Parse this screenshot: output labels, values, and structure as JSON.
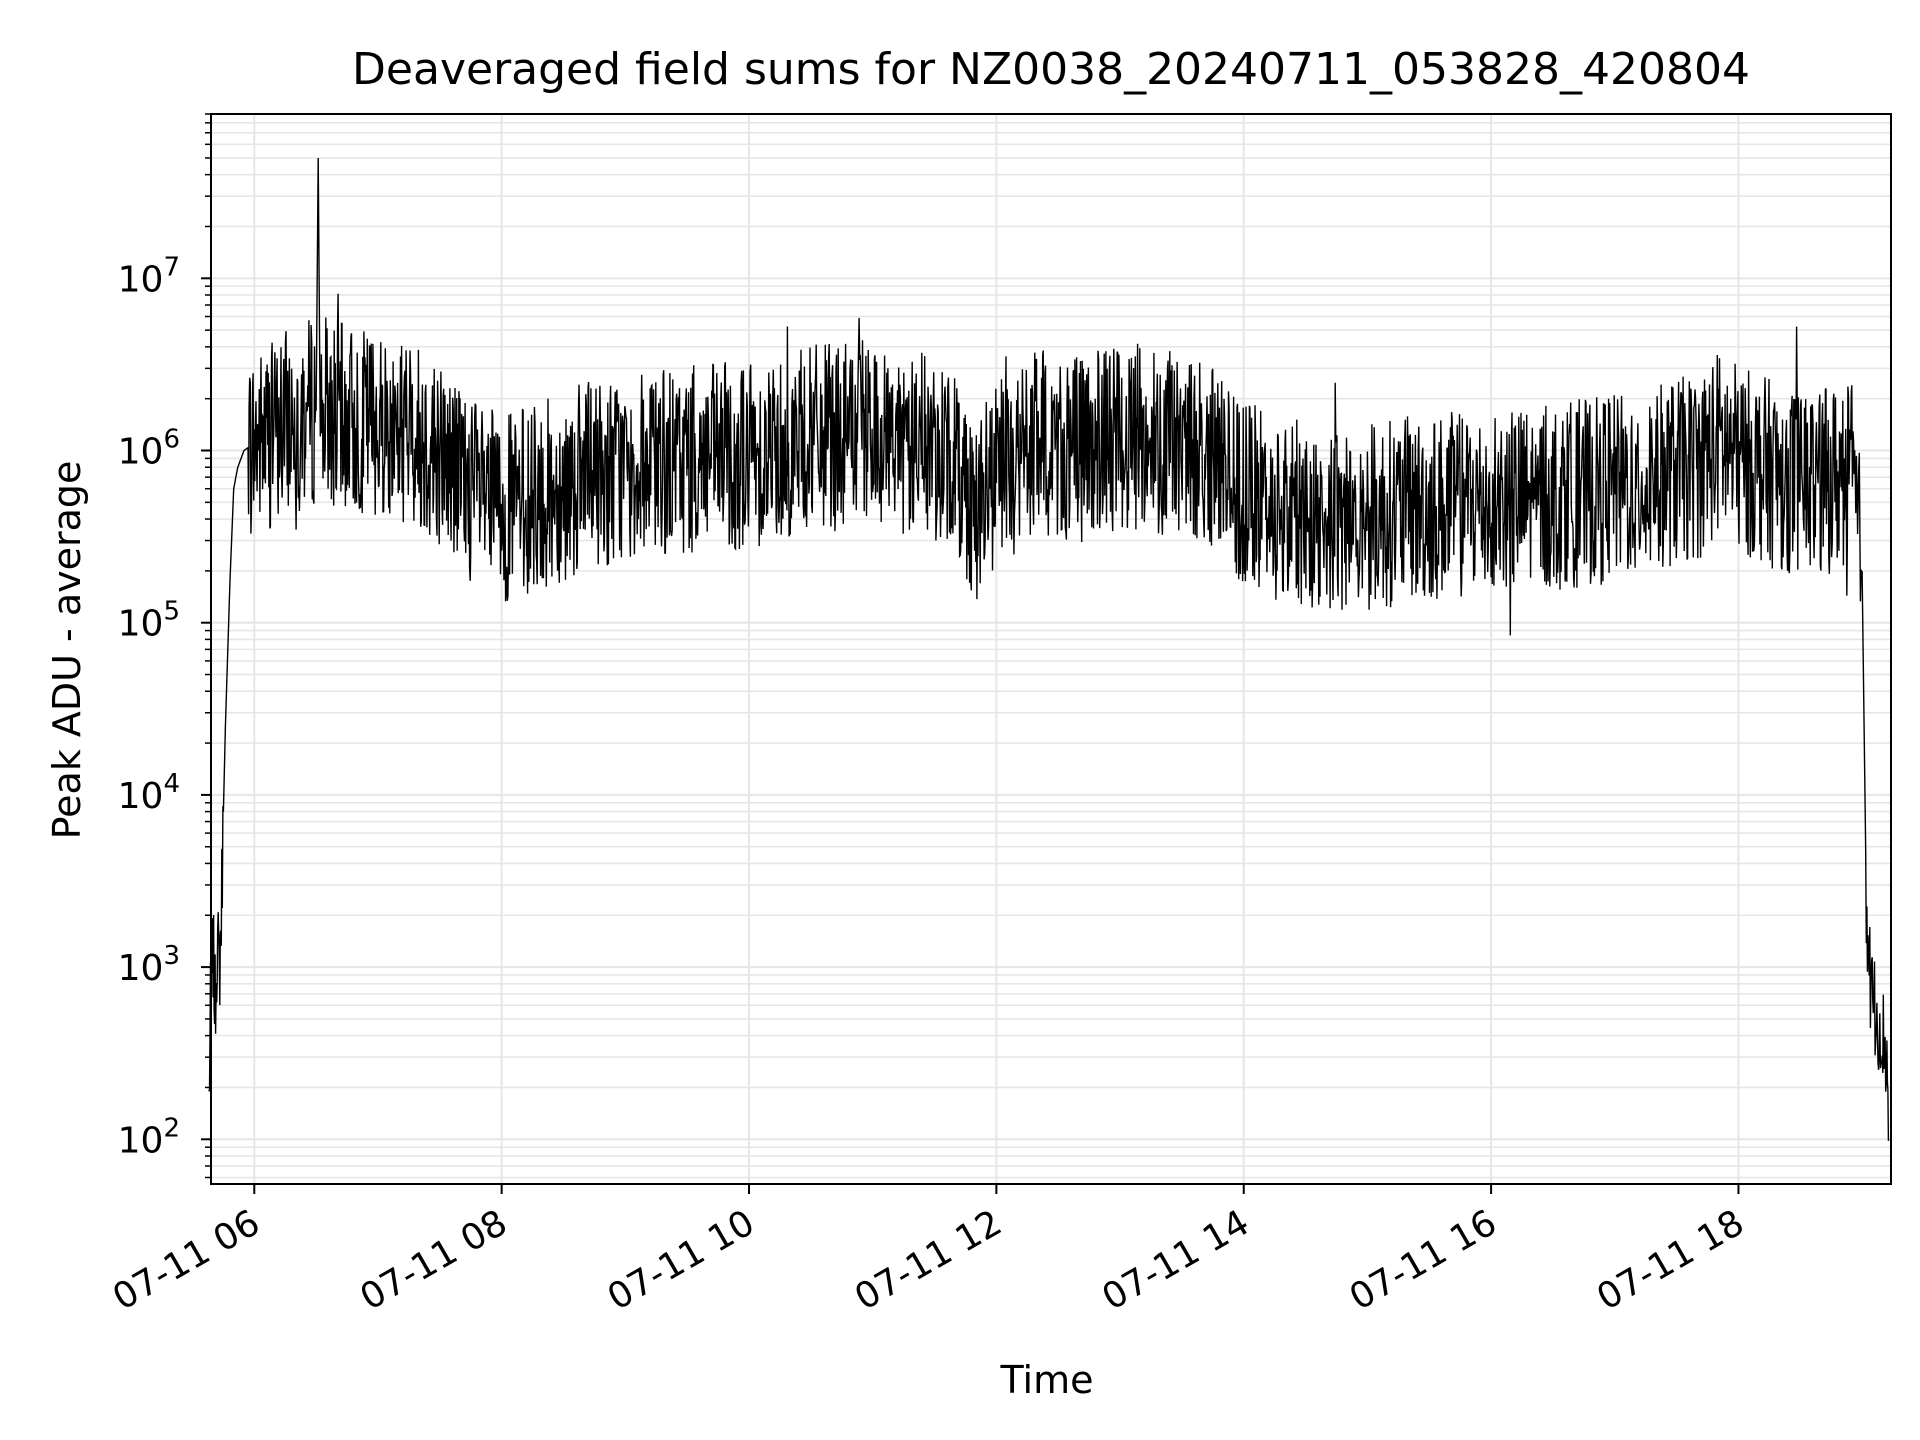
{
  "chart_data": {
    "type": "line",
    "title": "Deaveraged field sums for NZ0038_20240711_053828_420804",
    "xlabel": "Time",
    "ylabel": "Peak ADU - average",
    "x_scale": "time",
    "y_scale": "log",
    "xlim": [
      "07-11 05:39",
      "07-11 19:14"
    ],
    "ylim": [
      55,
      90000000
    ],
    "x_ticks": [
      "07-11 06",
      "07-11 08",
      "07-11 10",
      "07-11 12",
      "07-11 14",
      "07-11 16",
      "07-11 18"
    ],
    "y_ticks": [
      {
        "value": 100,
        "base": "10",
        "exp": "2"
      },
      {
        "value": 1000,
        "base": "10",
        "exp": "3"
      },
      {
        "value": 10000,
        "base": "10",
        "exp": "4"
      },
      {
        "value": 100000,
        "base": "10",
        "exp": "5"
      },
      {
        "value": 1000000,
        "base": "10",
        "exp": "6"
      },
      {
        "value": 10000000,
        "base": "10",
        "exp": "7"
      }
    ],
    "grid": true,
    "line_color": "#000000",
    "grid_color": "#e6e6e6",
    "series": [
      {
        "x": [
          "07-11 05:38",
          "07-11 05:39",
          "07-11 05:40",
          "07-11 05:41",
          "07-11 05:42",
          "07-11 05:43",
          "07-11 05:44",
          "07-11 05:45",
          "07-11 05:46",
          "07-11 05:48",
          "07-11 05:50",
          "07-11 05:52",
          "07-11 05:55",
          "07-11 06:00",
          "07-11 06:10",
          "07-11 06:20",
          "07-11 06:30",
          "07-11 06:31",
          "07-11 06:32",
          "07-11 06:45",
          "07-11 07:00",
          "07-11 07:15",
          "07-11 07:30",
          "07-11 07:45",
          "07-11 08:00",
          "07-11 08:20",
          "07-11 08:40",
          "07-11 09:00",
          "07-11 09:20",
          "07-11 09:40",
          "07-11 10:00",
          "07-11 10:20",
          "07-11 10:40",
          "07-11 11:00",
          "07-11 11:20",
          "07-11 11:40",
          "07-11 11:50",
          "07-11 12:00",
          "07-11 12:20",
          "07-11 12:40",
          "07-11 13:00",
          "07-11 13:20",
          "07-11 13:40",
          "07-11 14:00",
          "07-11 14:20",
          "07-11 14:40",
          "07-11 15:00",
          "07-11 15:20",
          "07-11 15:40",
          "07-11 16:00",
          "07-11 16:20",
          "07-11 16:40",
          "07-11 17:00",
          "07-11 17:20",
          "07-11 17:40",
          "07-11 17:50",
          "07-11 18:00",
          "07-11 18:20",
          "07-11 18:40",
          "07-11 18:55",
          "07-11 19:00",
          "07-11 19:02",
          "07-11 19:04",
          "07-11 19:06",
          "07-11 19:08",
          "07-11 19:10",
          "07-11 19:12",
          "07-11 19:13"
        ],
        "y": [
          170,
          800,
          1200,
          600,
          1500,
          900,
          2000,
          8000,
          25000,
          150000,
          600000,
          800000,
          1000000,
          1100000,
          1300000,
          1600000,
          1700000,
          50000000,
          1800000,
          1500000,
          1500000,
          1300000,
          1000000,
          600000,
          450000,
          550000,
          700000,
          800000,
          850000,
          900000,
          950000,
          1100000,
          1200000,
          1250000,
          1100000,
          900000,
          450000,
          700000,
          1100000,
          1000000,
          1200000,
          1150000,
          1000000,
          550000,
          450000,
          400000,
          420000,
          450000,
          480000,
          500000,
          520000,
          560000,
          600000,
          700000,
          800000,
          1100000,
          900000,
          700000,
          650000,
          750000,
          200000,
          2500,
          800,
          600,
          500,
          400,
          300,
          100
        ]
      }
    ]
  }
}
